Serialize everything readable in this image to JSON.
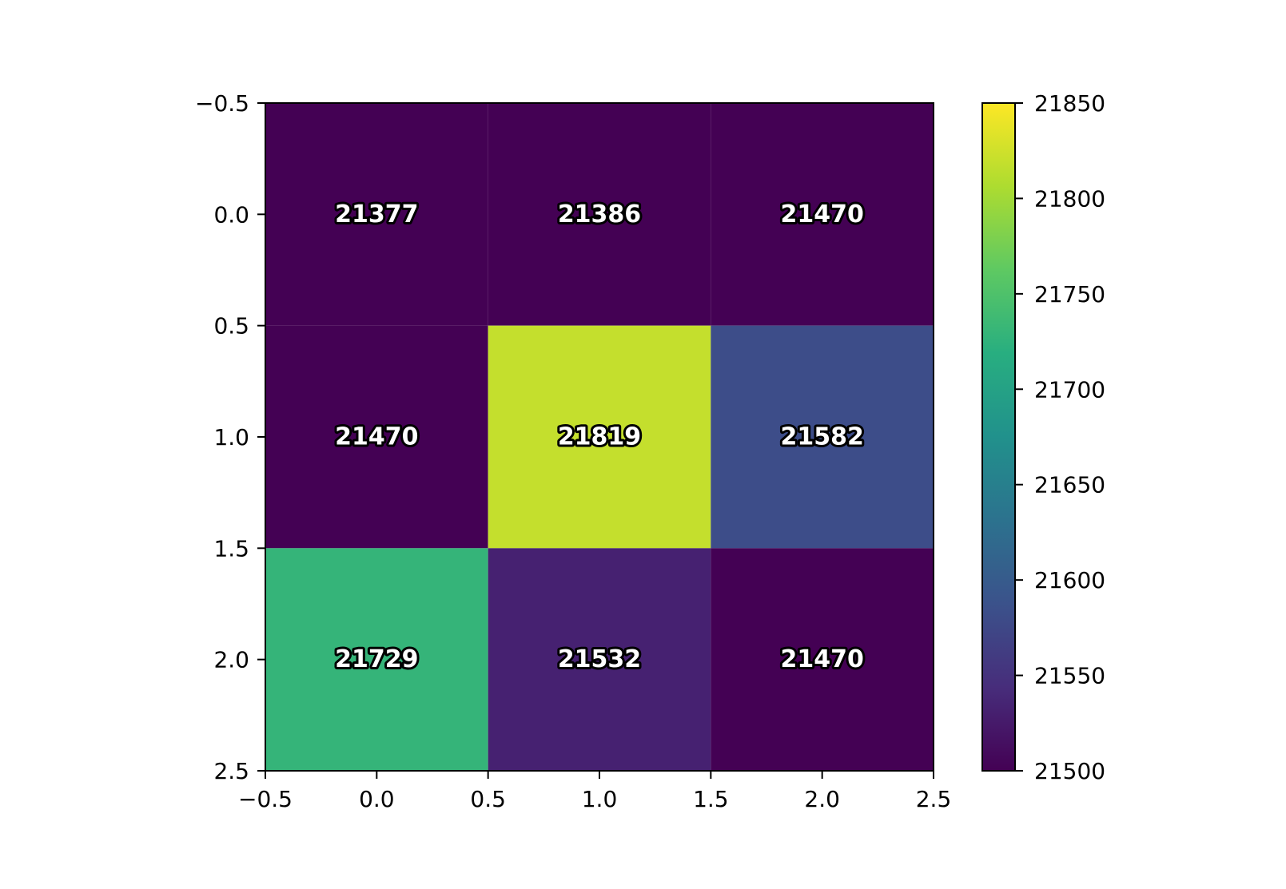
{
  "chart_data": {
    "type": "heatmap",
    "values": [
      [
        21377,
        21386,
        21470
      ],
      [
        21470,
        21819,
        21582
      ],
      [
        21729,
        21532,
        21470
      ]
    ],
    "xlim": [
      -0.5,
      2.5
    ],
    "xticks": [
      {
        "value": -0.5,
        "label": "−0.5"
      },
      {
        "value": 0,
        "label": "0.0"
      },
      0.5,
      {
        "value": 1,
        "label": "1.0"
      },
      1.5,
      {
        "value": 2,
        "label": "2.0"
      },
      2.5
    ],
    "ylim": [
      2.5,
      -0.5
    ],
    "yticks": [
      {
        "value": -0.5,
        "label": "−0.5"
      },
      {
        "value": 0,
        "label": "0.0"
      },
      0.5,
      {
        "value": 1,
        "label": "1.0"
      },
      1.5,
      {
        "value": 2,
        "label": "2.0"
      },
      2.5
    ],
    "colorbar": {
      "cmap": "viridis",
      "lim": [
        21500,
        21850
      ],
      "ticks": [
        21500,
        21550,
        21600,
        21650,
        21700,
        21750,
        21800,
        21850
      ]
    }
  }
}
